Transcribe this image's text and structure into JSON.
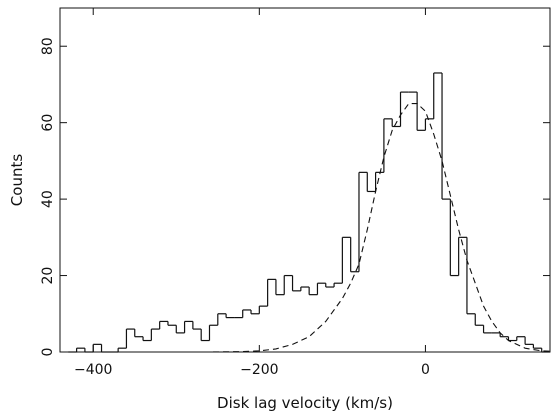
{
  "chart_data": {
    "type": "histogram",
    "title": "",
    "xlabel": "Disk lag velocity (km/s)",
    "ylabel": "Counts",
    "xlim": [
      -440,
      150
    ],
    "ylim": [
      0,
      90
    ],
    "x_ticks": [
      -400,
      -200,
      0
    ],
    "x_tick_labels": [
      "−400",
      "−200",
      "0"
    ],
    "y_ticks": [
      0,
      20,
      40,
      60,
      80
    ],
    "y_tick_labels": [
      "0",
      "20",
      "40",
      "60",
      "80"
    ],
    "grid": false,
    "legend": "none",
    "series": [
      {
        "style": "step",
        "bin_width": 10,
        "bin_starts": [
          -430,
          -420,
          -410,
          -400,
          -390,
          -380,
          -370,
          -360,
          -350,
          -340,
          -330,
          -320,
          -310,
          -300,
          -290,
          -280,
          -270,
          -260,
          -250,
          -240,
          -230,
          -220,
          -210,
          -200,
          -190,
          -180,
          -170,
          -160,
          -150,
          -140,
          -130,
          -120,
          -110,
          -100,
          -90,
          -80,
          -70,
          -60,
          -50,
          -40,
          -30,
          -20,
          -10,
          0,
          10,
          20,
          30,
          40,
          50,
          60,
          70,
          80,
          90,
          100,
          110,
          120,
          130,
          140
        ],
        "counts": [
          0,
          1,
          0,
          2,
          0,
          0,
          1,
          6,
          4,
          3,
          6,
          8,
          7,
          5,
          8,
          6,
          3,
          7,
          10,
          9,
          9,
          11,
          10,
          12,
          19,
          15,
          20,
          16,
          17,
          15,
          18,
          17,
          18,
          30,
          21,
          47,
          42,
          47,
          61,
          59,
          68,
          68,
          58,
          61,
          73,
          40,
          20,
          30,
          10,
          7,
          5,
          5,
          4,
          3,
          4,
          2,
          1,
          0
        ]
      },
      {
        "style": "dashed",
        "x": [
          -340,
          -300,
          -260,
          -220,
          -200,
          -180,
          -160,
          -140,
          -120,
          -100,
          -90,
          -80,
          -70,
          -60,
          -50,
          -40,
          -30,
          -20,
          -10,
          0,
          10,
          20,
          30,
          40,
          50,
          60,
          70,
          80,
          90,
          100,
          120,
          140,
          150
        ],
        "y": [
          0,
          0,
          0,
          0.1,
          0.3,
          0.8,
          2,
          4,
          8,
          14,
          18,
          23,
          32,
          42,
          51,
          58,
          62,
          65,
          65,
          63,
          57,
          50,
          41,
          32,
          24,
          18,
          12,
          8,
          5,
          3,
          1,
          0.3,
          0.2
        ]
      }
    ]
  }
}
